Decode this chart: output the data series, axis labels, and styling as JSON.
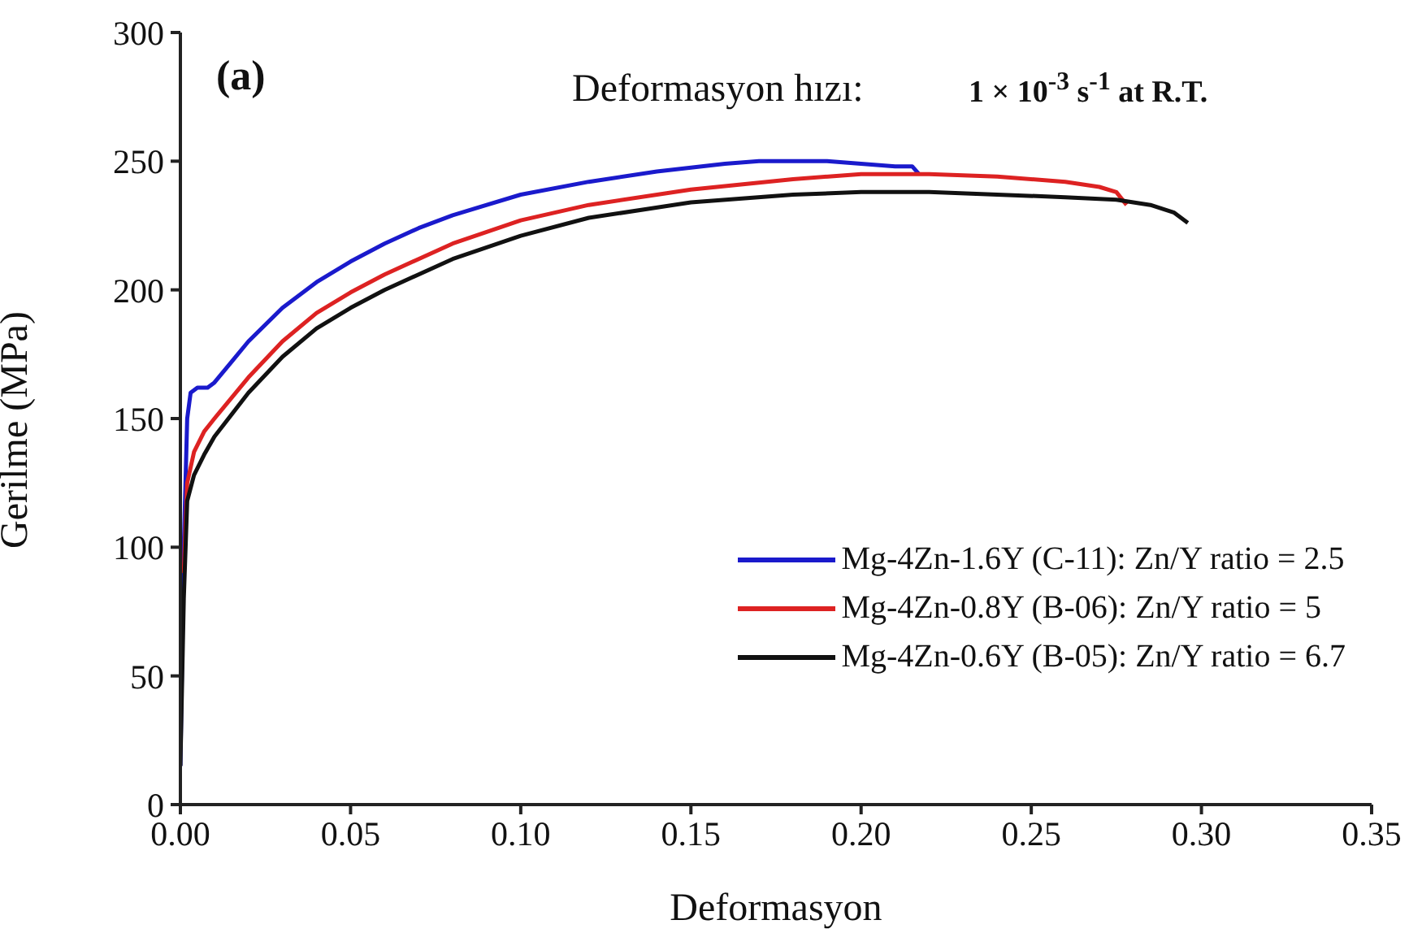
{
  "chart_data": {
    "type": "line",
    "xlabel": "Deformasyon",
    "ylabel": "Gerilme (MPa)",
    "annotations": [
      "(a)",
      "Deformasyon hızı:",
      "1 × 10$^{-3}$ s$^{-1}$ at R.T."
    ],
    "xlim": [
      0,
      0.35
    ],
    "xticks": [
      {
        "value": 0,
        "label": "0.00"
      },
      {
        "value": 0.05,
        "label": "0.05"
      },
      {
        "value": 0.1,
        "label": "0.10"
      },
      {
        "value": 0.15,
        "label": "0.15"
      },
      {
        "value": 0.2,
        "label": "0.20"
      },
      {
        "value": 0.25,
        "label": "0.25"
      },
      {
        "value": 0.3,
        "label": "0.30"
      },
      {
        "value": 0.35,
        "label": "0.35"
      }
    ],
    "ylim": [
      0,
      300
    ],
    "yticks": [
      0,
      50,
      100,
      150,
      200,
      250,
      300
    ],
    "grid": false,
    "legend": "bottom right",
    "series": [
      {
        "name": "Mg-4Zn-1.6Y (C-11): Zn/Y ratio = 2.5",
        "color": "#1a1acc",
        "x": [
          0,
          0.001,
          0.002,
          0.003,
          0.005,
          0.008,
          0.01,
          0.015,
          0.02,
          0.03,
          0.04,
          0.05,
          0.06,
          0.07,
          0.08,
          0.1,
          0.12,
          0.14,
          0.16,
          0.17,
          0.19,
          0.2,
          0.21,
          0.215,
          0.217
        ],
        "values": [
          15,
          100,
          150,
          160,
          162,
          162,
          164,
          172,
          180,
          193,
          203,
          211,
          218,
          224,
          229,
          237,
          242,
          246,
          249,
          250,
          250,
          249,
          248,
          248,
          245
        ]
      },
      {
        "name": "Mg-4Zn-0.8Y (B-06): Zn/Y ratio = 5",
        "color": "#dd2222",
        "x": [
          0.001,
          0.002,
          0.004,
          0.007,
          0.01,
          0.02,
          0.03,
          0.04,
          0.05,
          0.06,
          0.08,
          0.1,
          0.12,
          0.15,
          0.18,
          0.2,
          0.22,
          0.24,
          0.26,
          0.27,
          0.275,
          0.278
        ],
        "values": [
          90,
          125,
          137,
          145,
          150,
          166,
          180,
          191,
          199,
          206,
          218,
          227,
          233,
          239,
          243,
          245,
          245,
          244,
          242,
          240,
          238,
          233
        ]
      },
      {
        "name": "Mg-4Zn-0.6Y (B-05): Zn/Y ratio = 6.7",
        "color": "#111111",
        "x": [
          0,
          0.001,
          0.002,
          0.004,
          0.007,
          0.01,
          0.02,
          0.03,
          0.04,
          0.05,
          0.06,
          0.08,
          0.1,
          0.12,
          0.15,
          0.18,
          0.2,
          0.22,
          0.24,
          0.26,
          0.275,
          0.285,
          0.292,
          0.296
        ],
        "values": [
          15,
          80,
          118,
          128,
          136,
          143,
          160,
          174,
          185,
          193,
          200,
          212,
          221,
          228,
          234,
          237,
          238,
          238,
          237,
          236,
          235,
          233,
          230,
          226
        ]
      }
    ]
  }
}
